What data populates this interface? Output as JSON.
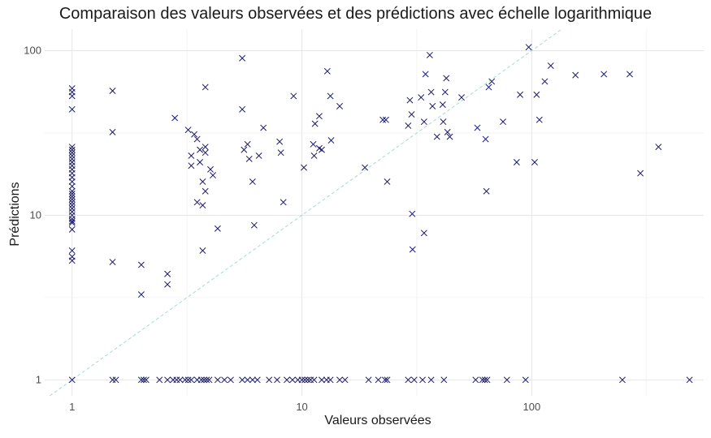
{
  "chart_data": {
    "type": "scatter",
    "title": "Comparaison des valeurs observées et des prédictions avec échelle logarithmique",
    "xlabel": "Valeurs observées",
    "ylabel": "Prédictions",
    "x_scale": "log10",
    "y_scale": "log10",
    "xlim": [
      0.76,
      560
    ],
    "ylim": [
      0.8,
      135
    ],
    "x_ticks": [
      1,
      10,
      100
    ],
    "x_tick_labels": [
      "1",
      "10",
      "100"
    ],
    "y_ticks": [
      1,
      10,
      100
    ],
    "y_tick_labels": [
      "1",
      "10",
      "100"
    ],
    "grid": true,
    "marker": "x",
    "marker_color": "#1a1a6e",
    "reference_line": {
      "type": "y=x",
      "style": "dashed",
      "color": "#a8d8d8"
    },
    "series": [
      {
        "points": [
          [
            1,
            59
          ],
          [
            1,
            56
          ],
          [
            1,
            53
          ],
          [
            1,
            44
          ],
          [
            1,
            26
          ],
          [
            1,
            25
          ],
          [
            1,
            24
          ],
          [
            1,
            23
          ],
          [
            1,
            22
          ],
          [
            1,
            21
          ],
          [
            1,
            20
          ],
          [
            1,
            19
          ],
          [
            1,
            18
          ],
          [
            1,
            17
          ],
          [
            1,
            16
          ],
          [
            1,
            15
          ],
          [
            1,
            14
          ],
          [
            1,
            13.5
          ],
          [
            1,
            13
          ],
          [
            1,
            12.5
          ],
          [
            1,
            12
          ],
          [
            1,
            11.5
          ],
          [
            1,
            11
          ],
          [
            1,
            10.5
          ],
          [
            1,
            10
          ],
          [
            1,
            9.5
          ],
          [
            1,
            9.2
          ],
          [
            1,
            9
          ],
          [
            1,
            8.2
          ],
          [
            1,
            6.1
          ],
          [
            1,
            5.6
          ],
          [
            1,
            5.3
          ],
          [
            1.5,
            57
          ],
          [
            1.5,
            32
          ],
          [
            1.5,
            5.2
          ],
          [
            2,
            5.0
          ],
          [
            2,
            3.3
          ],
          [
            2.6,
            4.4
          ],
          [
            2.6,
            3.8
          ],
          [
            2.8,
            39
          ],
          [
            3.2,
            33
          ],
          [
            3.3,
            23
          ],
          [
            3.3,
            20
          ],
          [
            3.4,
            31
          ],
          [
            3.5,
            29
          ],
          [
            3.5,
            12
          ],
          [
            3.6,
            25
          ],
          [
            3.6,
            21
          ],
          [
            3.7,
            16
          ],
          [
            3.7,
            11.5
          ],
          [
            3.7,
            6.1
          ],
          [
            3.8,
            60
          ],
          [
            3.8,
            24
          ],
          [
            3.8,
            14
          ],
          [
            3.8,
            26
          ],
          [
            4.0,
            19
          ],
          [
            4.1,
            17.5
          ],
          [
            4.3,
            8.3
          ],
          [
            5.5,
            90
          ],
          [
            5.5,
            44
          ],
          [
            5.6,
            25
          ],
          [
            5.8,
            27
          ],
          [
            5.9,
            22
          ],
          [
            6.1,
            16
          ],
          [
            6.2,
            8.7
          ],
          [
            6.5,
            23
          ],
          [
            6.8,
            34
          ],
          [
            8.0,
            28
          ],
          [
            8.1,
            24
          ],
          [
            8.3,
            12
          ],
          [
            9.2,
            53
          ],
          [
            10.2,
            19.5
          ],
          [
            11.2,
            27
          ],
          [
            11.3,
            23
          ],
          [
            11.4,
            36
          ],
          [
            11.9,
            25.5
          ],
          [
            11.9,
            40
          ],
          [
            12.2,
            25
          ],
          [
            12.9,
            75
          ],
          [
            13.3,
            53
          ],
          [
            13.4,
            28.5
          ],
          [
            14.6,
            46
          ],
          [
            18.8,
            19.5
          ],
          [
            22.5,
            38
          ],
          [
            23.2,
            38
          ],
          [
            23.5,
            16
          ],
          [
            29,
            35
          ],
          [
            29.5,
            50
          ],
          [
            30,
            41
          ],
          [
            30.2,
            10.2
          ],
          [
            30.3,
            6.2
          ],
          [
            33,
            52
          ],
          [
            34,
            37
          ],
          [
            34,
            7.8
          ],
          [
            34.5,
            72
          ],
          [
            36,
            94
          ],
          [
            36.5,
            56
          ],
          [
            37,
            46
          ],
          [
            38.7,
            30
          ],
          [
            41,
            47
          ],
          [
            41.2,
            37
          ],
          [
            42,
            56
          ],
          [
            42.5,
            68
          ],
          [
            43,
            32
          ],
          [
            44,
            30
          ],
          [
            49.5,
            52
          ],
          [
            58,
            34
          ],
          [
            63,
            29
          ],
          [
            63.5,
            14
          ],
          [
            65,
            60
          ],
          [
            67,
            65
          ],
          [
            75,
            37
          ],
          [
            86,
            21
          ],
          [
            89,
            54
          ],
          [
            97,
            105
          ],
          [
            103,
            21
          ],
          [
            105,
            54
          ],
          [
            108,
            38
          ],
          [
            114,
            65
          ],
          [
            121,
            81
          ],
          [
            155,
            71
          ],
          [
            206,
            72
          ],
          [
            267,
            72
          ],
          [
            297,
            18
          ],
          [
            356,
            26
          ],
          [
            1,
            1
          ],
          [
            1.5,
            1
          ],
          [
            1.55,
            1
          ],
          [
            2.0,
            1
          ],
          [
            2.05,
            1
          ],
          [
            2.1,
            1
          ],
          [
            2.4,
            1
          ],
          [
            2.6,
            1
          ],
          [
            2.75,
            1
          ],
          [
            2.85,
            1
          ],
          [
            2.95,
            1
          ],
          [
            3.1,
            1
          ],
          [
            3.2,
            1
          ],
          [
            3.3,
            1
          ],
          [
            3.5,
            1
          ],
          [
            3.65,
            1
          ],
          [
            3.75,
            1
          ],
          [
            3.85,
            1
          ],
          [
            3.95,
            1
          ],
          [
            4.3,
            1
          ],
          [
            4.6,
            1
          ],
          [
            4.9,
            1
          ],
          [
            5.5,
            1
          ],
          [
            5.8,
            1
          ],
          [
            6.1,
            1
          ],
          [
            6.4,
            1
          ],
          [
            7.2,
            1
          ],
          [
            7.8,
            1
          ],
          [
            8.6,
            1
          ],
          [
            9.1,
            1
          ],
          [
            9.6,
            1
          ],
          [
            10.0,
            1
          ],
          [
            10.3,
            1
          ],
          [
            10.6,
            1
          ],
          [
            10.9,
            1
          ],
          [
            11.3,
            1
          ],
          [
            12.2,
            1
          ],
          [
            12.8,
            1
          ],
          [
            13.3,
            1
          ],
          [
            14.6,
            1
          ],
          [
            15.4,
            1
          ],
          [
            19.5,
            1
          ],
          [
            21.5,
            1
          ],
          [
            23.0,
            1
          ],
          [
            23.5,
            1
          ],
          [
            29,
            1
          ],
          [
            30.8,
            1
          ],
          [
            33.5,
            1
          ],
          [
            36.5,
            1
          ],
          [
            41.5,
            1
          ],
          [
            57,
            1
          ],
          [
            61,
            1
          ],
          [
            62.5,
            1
          ],
          [
            64,
            1
          ],
          [
            78,
            1
          ],
          [
            94,
            1
          ],
          [
            248,
            1
          ],
          [
            486,
            1
          ]
        ]
      }
    ]
  }
}
